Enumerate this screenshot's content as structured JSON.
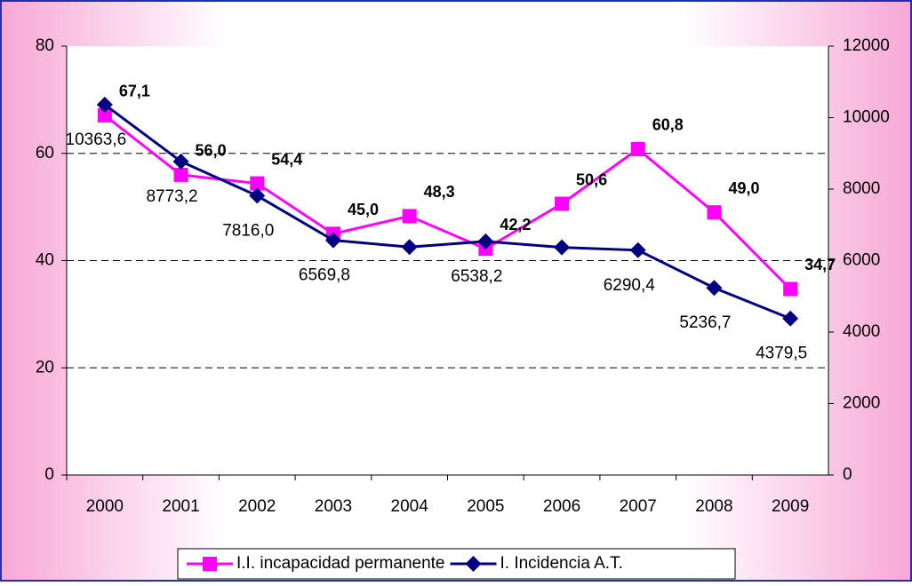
{
  "chart_data": {
    "type": "line",
    "categories": [
      "2000",
      "2001",
      "2002",
      "2003",
      "2004",
      "2005",
      "2006",
      "2007",
      "2008",
      "2009"
    ],
    "series": [
      {
        "name": "I.I. incapacidad permanente",
        "color": "#ff00ff",
        "marker": "square",
        "axis": "y",
        "values": [
          67.1,
          56.0,
          54.4,
          45.0,
          48.3,
          42.2,
          50.6,
          60.8,
          49.0,
          34.7
        ],
        "value_labels": [
          "67,1",
          "56,0",
          "54,4",
          "45,0",
          "48,3",
          "42,2",
          "50,6",
          "60,8",
          "49,0",
          "34,7"
        ]
      },
      {
        "name": "I. Incidencia A.T.",
        "color": "#000080",
        "marker": "diamond",
        "axis": "y2",
        "values": [
          10363.6,
          8773.2,
          7816.0,
          6569.8,
          6380,
          6538.2,
          6370,
          6290.4,
          5236.7,
          4379.5
        ],
        "value_labels": [
          "10363,6",
          "8773,2",
          "7816,0",
          "6569,8",
          null,
          "6538,2",
          null,
          "6290,4",
          "5236,7",
          "4379,5"
        ]
      }
    ],
    "ylim": [
      0,
      80
    ],
    "yticks": [
      0,
      20,
      40,
      60,
      80
    ],
    "y2lim": [
      0,
      12000
    ],
    "y2ticks": [
      0,
      2000,
      4000,
      6000,
      8000,
      10000,
      12000
    ],
    "grid": true,
    "legend": "bottom"
  }
}
